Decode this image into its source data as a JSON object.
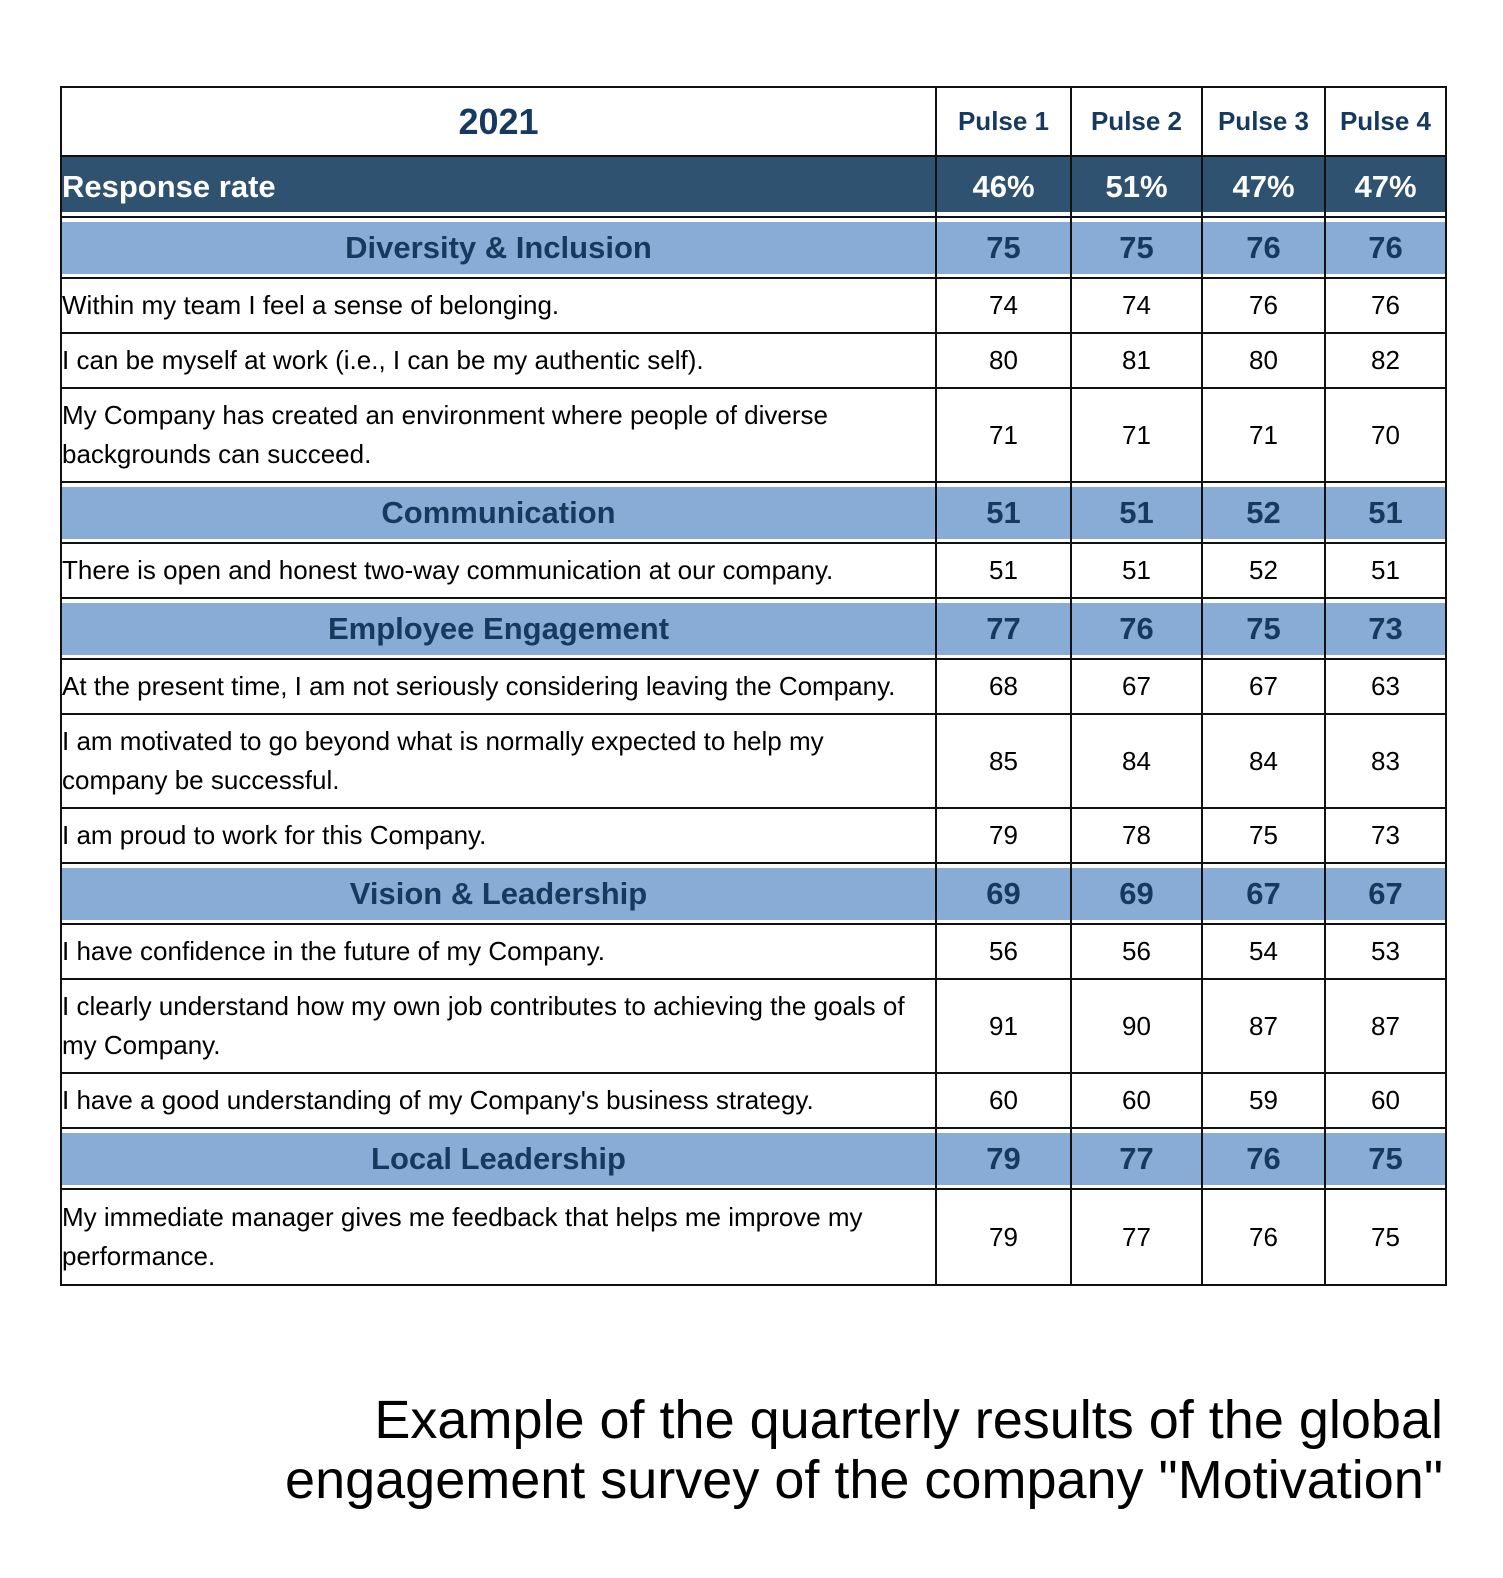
{
  "table": {
    "year": "2021",
    "pulses": [
      "Pulse 1",
      "Pulse 2",
      "Pulse 3",
      "Pulse 4"
    ],
    "response_rate": {
      "label": "Response rate",
      "values": [
        "46%",
        "51%",
        "47%",
        "47%"
      ]
    },
    "sections": [
      {
        "name": "Diversity & Inclusion",
        "scores": [
          "75",
          "75",
          "76",
          "76"
        ],
        "questions": [
          {
            "text": "Within my team I feel a sense of belonging.",
            "scores": [
              "74",
              "74",
              "76",
              "76"
            ]
          },
          {
            "text": "I can be myself at work (i.e., I can be my authentic self).",
            "scores": [
              "80",
              "81",
              "80",
              "82"
            ]
          },
          {
            "text": "My Company has created an environment where people of diverse backgrounds can succeed.",
            "scores": [
              "71",
              "71",
              "71",
              "70"
            ]
          }
        ]
      },
      {
        "name": "Communication",
        "scores": [
          "51",
          "51",
          "52",
          "51"
        ],
        "questions": [
          {
            "text": "There is open and honest two-way communication at our company.",
            "scores": [
              "51",
              "51",
              "52",
              "51"
            ]
          }
        ]
      },
      {
        "name": "Employee Engagement",
        "scores": [
          "77",
          "76",
          "75",
          "73"
        ],
        "questions": [
          {
            "text": "At the present time, I am not seriously considering leaving the Company.",
            "scores": [
              "68",
              "67",
              "67",
              "63"
            ]
          },
          {
            "text": "I am motivated to go beyond what is normally expected to help my company be successful.",
            "scores": [
              "85",
              "84",
              "84",
              "83"
            ]
          },
          {
            "text": "I am proud to work for this Company.",
            "scores": [
              "79",
              "78",
              "75",
              "73"
            ]
          }
        ]
      },
      {
        "name": "Vision & Leadership",
        "scores": [
          "69",
          "69",
          "67",
          "67"
        ],
        "questions": [
          {
            "text": "I have confidence in the future of my Company.",
            "scores": [
              "56",
              "56",
              "54",
              "53"
            ]
          },
          {
            "text": "I clearly understand how my own job contributes to achieving the goals of my Company.",
            "scores": [
              "91",
              "90",
              "87",
              "87"
            ]
          },
          {
            "text": "I have a good understanding of my Company's business strategy.",
            "scores": [
              "60",
              "60",
              "59",
              "60"
            ]
          }
        ]
      },
      {
        "name": "Local Leadership",
        "scores": [
          "79",
          "77",
          "76",
          "75"
        ],
        "questions": [
          {
            "text": "My immediate manager gives me feedback that helps me improve my performance.",
            "scores": [
              "79",
              "77",
              "76",
              "75"
            ]
          }
        ]
      }
    ]
  },
  "caption": {
    "line1": "Example of the quarterly results of the global",
    "line2": "engagement survey of the company \"Motivation\""
  },
  "colors": {
    "header_text": "#163a5f",
    "response_rate_bg": "#2e5270",
    "category_bg": "#88acd6",
    "border": "#111111"
  }
}
